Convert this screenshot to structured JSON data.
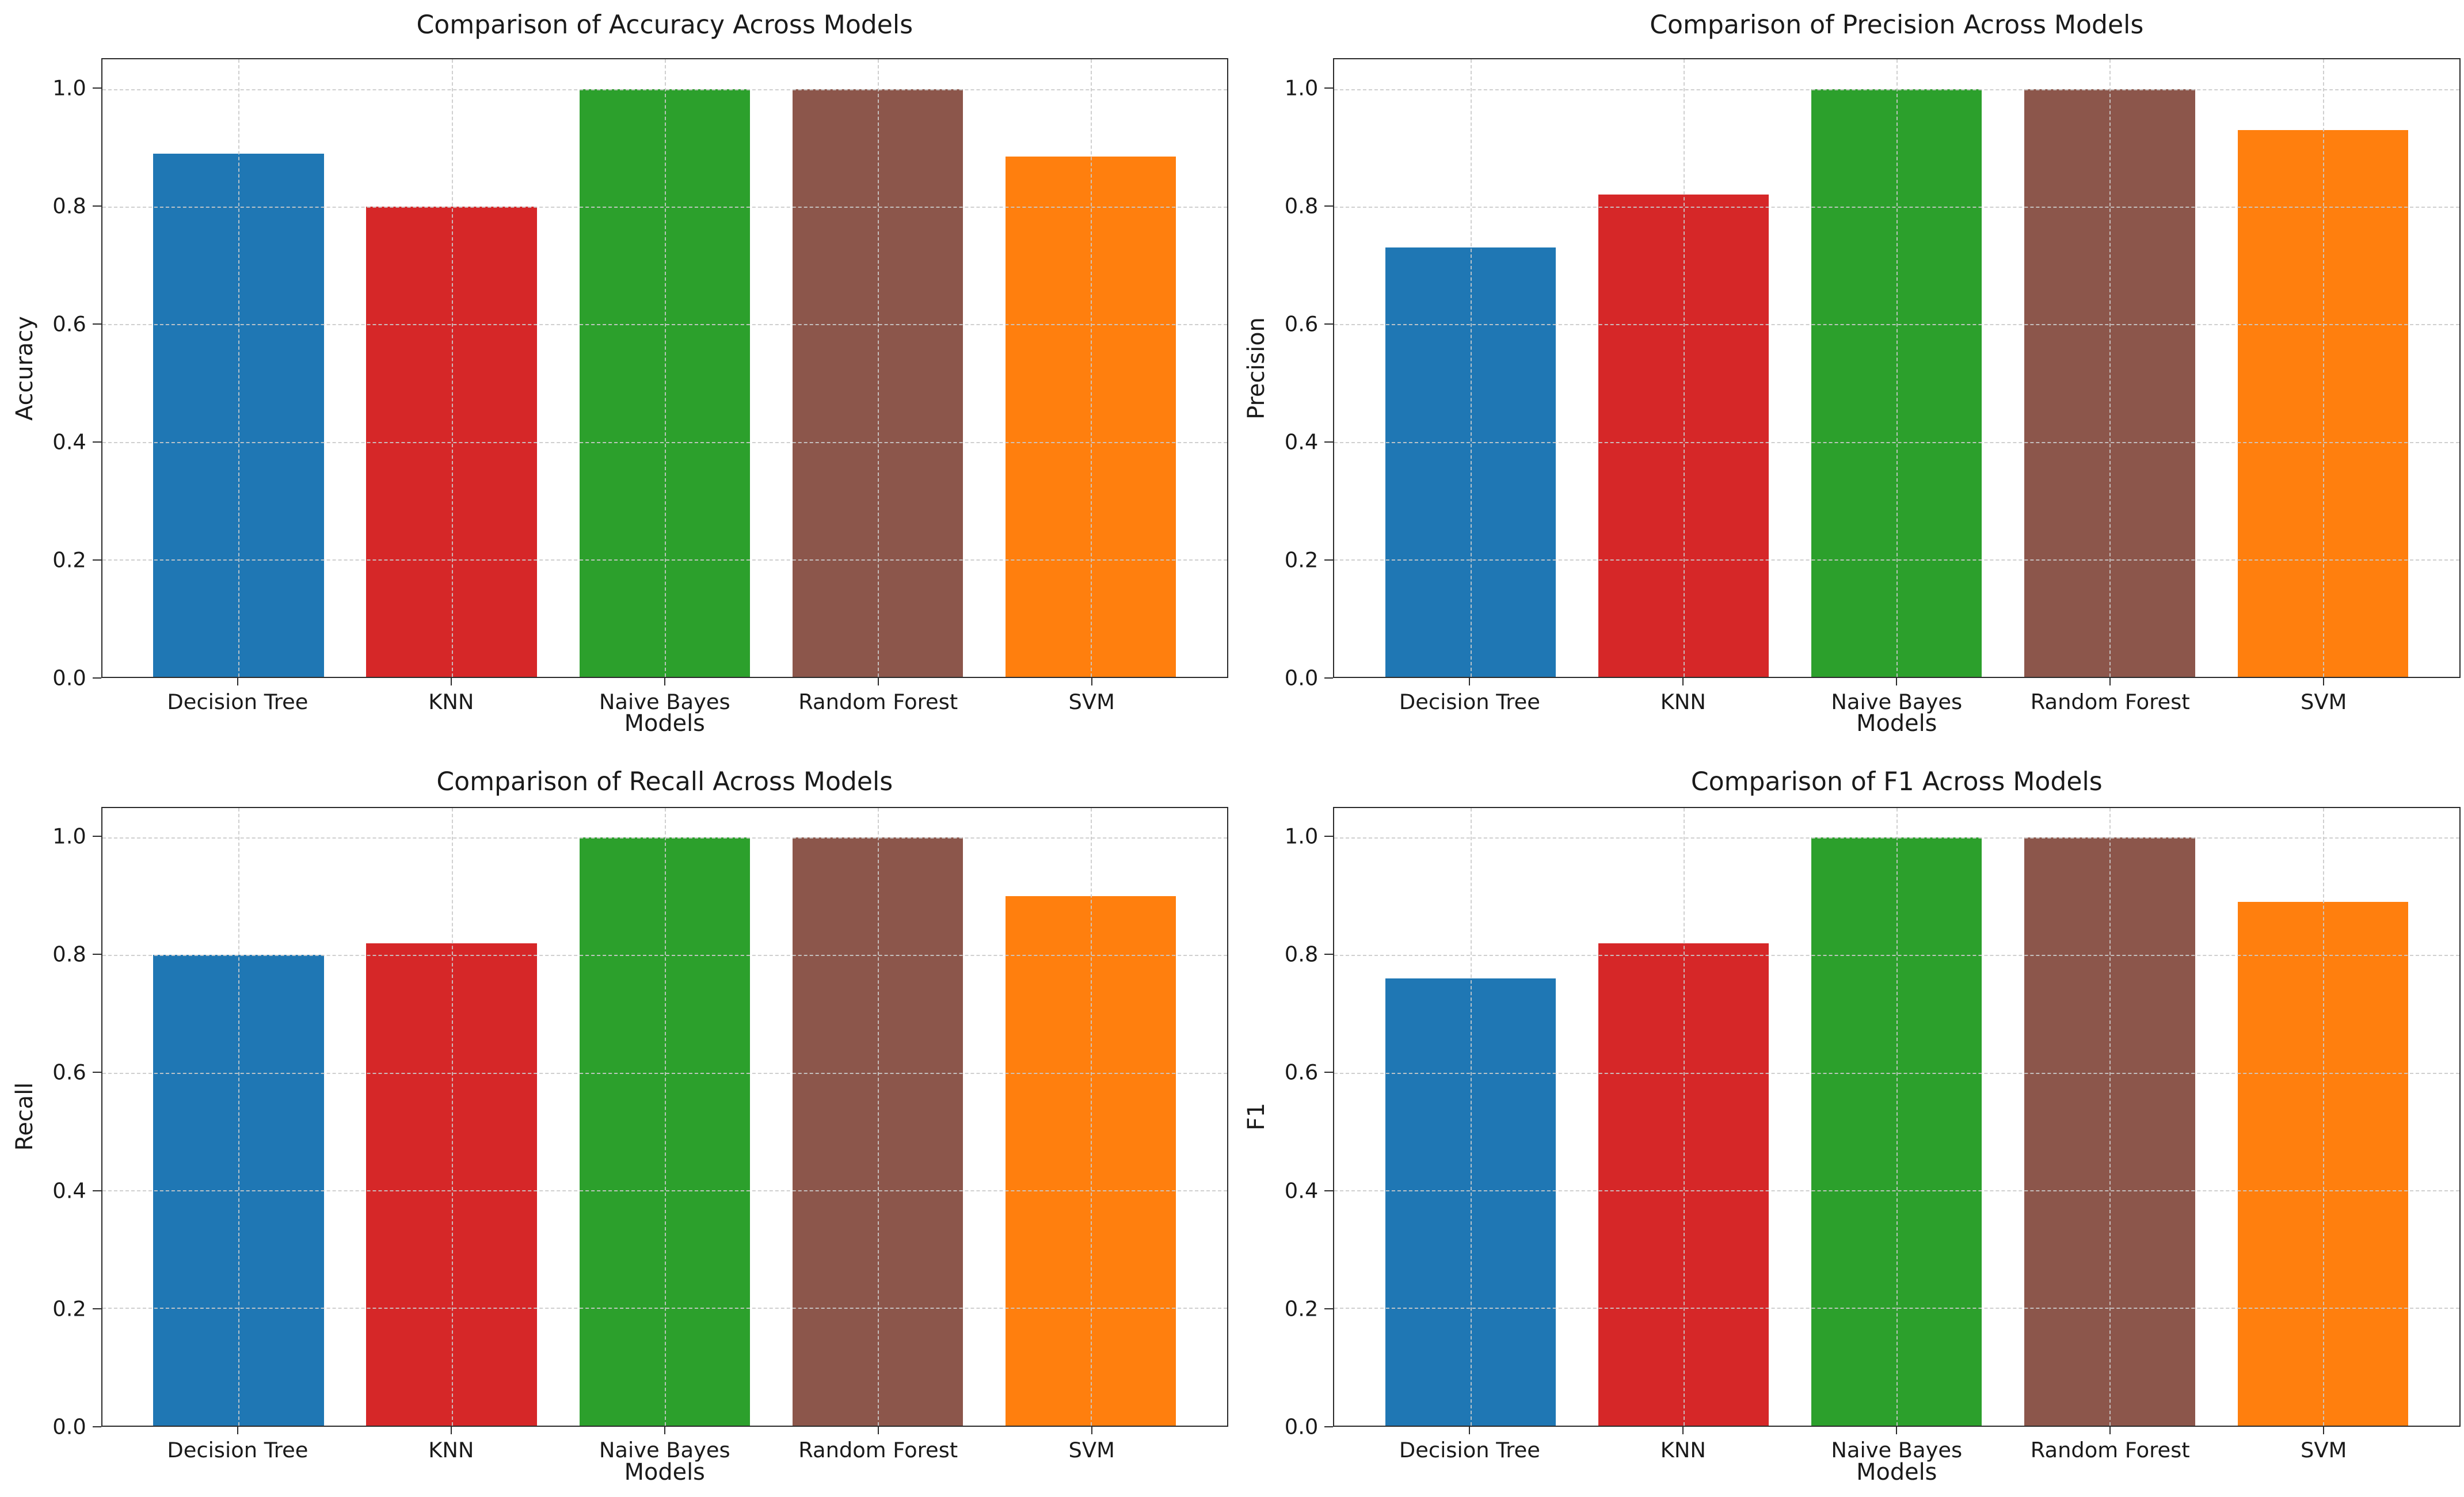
{
  "figure": {
    "background_color": "#ffffff",
    "grid_color": "#cccccc",
    "spine_color": "#2b2b2b",
    "text_color": "#1a1a1a",
    "y_tick_labels": [
      "0.0",
      "0.2",
      "0.4",
      "0.6",
      "0.8",
      "1.0"
    ],
    "categories": [
      "Decision Tree",
      "KNN",
      "Naive Bayes",
      "Random Forest",
      "SVM"
    ],
    "bar_colors": [
      "#1f77b4",
      "#d62728",
      "#2ca02c",
      "#8c564b",
      "#ff7f0e"
    ]
  },
  "chart_data": [
    {
      "type": "bar",
      "title": "Comparison of Accuracy Across Models",
      "xlabel": "Models",
      "ylabel": "Accuracy",
      "categories": [
        "Decision Tree",
        "KNN",
        "Naive Bayes",
        "Random Forest",
        "SVM"
      ],
      "values": [
        0.89,
        0.8,
        1.0,
        1.0,
        0.885
      ],
      "colors": [
        "#1f77b4",
        "#d62728",
        "#2ca02c",
        "#8c564b",
        "#ff7f0e"
      ],
      "ylim": [
        0,
        1.05
      ],
      "yticks": [
        0.0,
        0.2,
        0.4,
        0.6,
        0.8,
        1.0
      ],
      "grid": "dashed-both-axes",
      "legend": "none"
    },
    {
      "type": "bar",
      "title": "Comparison of Precision Across Models",
      "xlabel": "Models",
      "ylabel": "Precision",
      "categories": [
        "Decision Tree",
        "KNN",
        "Naive Bayes",
        "Random Forest",
        "SVM"
      ],
      "values": [
        0.73,
        0.82,
        1.0,
        1.0,
        0.93
      ],
      "colors": [
        "#1f77b4",
        "#d62728",
        "#2ca02c",
        "#8c564b",
        "#ff7f0e"
      ],
      "ylim": [
        0,
        1.05
      ],
      "yticks": [
        0.0,
        0.2,
        0.4,
        0.6,
        0.8,
        1.0
      ],
      "grid": "dashed-both-axes",
      "legend": "none"
    },
    {
      "type": "bar",
      "title": "Comparison of Recall Across Models",
      "xlabel": "Models",
      "ylabel": "Recall",
      "categories": [
        "Decision Tree",
        "KNN",
        "Naive Bayes",
        "Random Forest",
        "SVM"
      ],
      "values": [
        0.8,
        0.82,
        1.0,
        1.0,
        0.9
      ],
      "colors": [
        "#1f77b4",
        "#d62728",
        "#2ca02c",
        "#8c564b",
        "#ff7f0e"
      ],
      "ylim": [
        0,
        1.05
      ],
      "yticks": [
        0.0,
        0.2,
        0.4,
        0.6,
        0.8,
        1.0
      ],
      "grid": "dashed-both-axes",
      "legend": "none"
    },
    {
      "type": "bar",
      "title": "Comparison of F1 Across Models",
      "xlabel": "Models",
      "ylabel": "F1",
      "categories": [
        "Decision Tree",
        "KNN",
        "Naive Bayes",
        "Random Forest",
        "SVM"
      ],
      "values": [
        0.76,
        0.82,
        1.0,
        1.0,
        0.89
      ],
      "colors": [
        "#1f77b4",
        "#d62728",
        "#2ca02c",
        "#8c564b",
        "#ff7f0e"
      ],
      "ylim": [
        0,
        1.05
      ],
      "yticks": [
        0.0,
        0.2,
        0.4,
        0.6,
        0.8,
        1.0
      ],
      "grid": "dashed-both-axes",
      "legend": "none"
    }
  ]
}
